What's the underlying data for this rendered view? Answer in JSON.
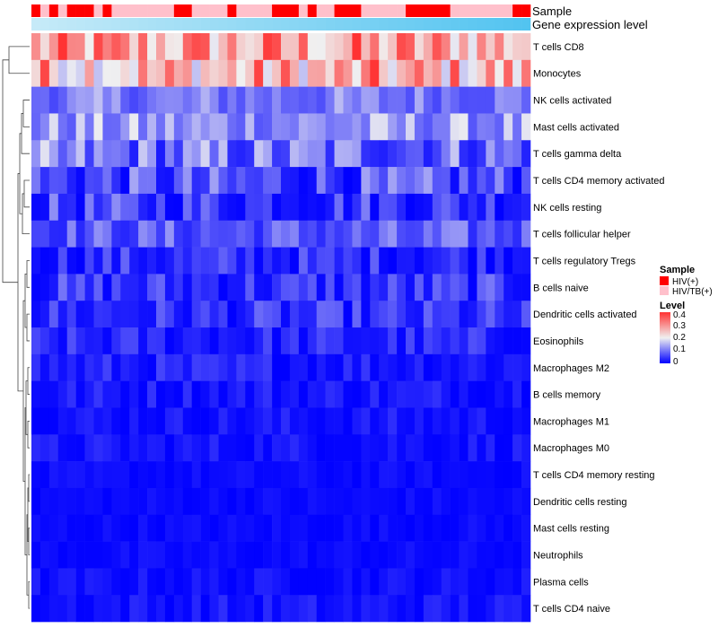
{
  "chart_data": {
    "type": "heatmap",
    "annotation_titles": {
      "sample": "Sample",
      "gene_expression": "Gene expression level"
    },
    "sample_legend": {
      "title": "Sample",
      "entries": [
        {
          "label": "HIV(+)",
          "color": "#ff0000"
        },
        {
          "label": "HIV/TB(+)",
          "color": "#ffc0cb"
        }
      ]
    },
    "level_legend": {
      "title": "Level",
      "ticks": [
        "0.4",
        "0.3",
        "0.2",
        "0.1",
        "0"
      ],
      "range": [
        0,
        0.4
      ],
      "colors": {
        "low": "#0000ff",
        "mid": "#f0f0f0",
        "high": "#ff3333"
      }
    },
    "sample_groups": [
      0,
      1,
      0,
      1,
      0,
      0,
      0,
      1,
      0,
      1,
      1,
      1,
      1,
      1,
      1,
      1,
      0,
      0,
      1,
      1,
      1,
      1,
      0,
      1,
      1,
      1,
      1,
      0,
      0,
      0,
      1,
      0,
      1,
      1,
      0,
      0,
      0,
      1,
      1,
      1,
      1,
      1,
      0,
      0,
      0,
      0,
      0,
      1,
      1,
      1,
      1,
      1,
      1,
      1,
      0,
      0
    ],
    "gene_expression_annotation": [
      0.02,
      0.98
    ],
    "rows": [
      "T cells CD8",
      "Monocytes",
      "NK cells activated",
      "Mast cells activated",
      "T cells gamma delta",
      "T cells CD4 memory activated",
      "NK cells resting",
      "T cells follicular helper",
      "T cells regulatory  Tregs",
      "B cells naive",
      "Dendritic cells activated",
      "Eosinophils",
      "Macrophages M2",
      "B cells memory",
      "Macrophages M1",
      "Macrophages M0",
      "T cells CD4 memory resting",
      "Dendritic cells resting",
      "Mast cells resting",
      "Neutrophils",
      "Plasma cells",
      "T cells CD4 naive"
    ],
    "n_columns": 56,
    "row_value_ranges": [
      [
        0.18,
        0.42
      ],
      [
        0.16,
        0.4
      ],
      [
        0.06,
        0.16
      ],
      [
        0.07,
        0.2
      ],
      [
        0.02,
        0.19
      ],
      [
        0.0,
        0.14
      ],
      [
        0.0,
        0.12
      ],
      [
        0.03,
        0.13
      ],
      [
        0.0,
        0.09
      ],
      [
        0.0,
        0.1
      ],
      [
        0.0,
        0.09
      ],
      [
        0.0,
        0.07
      ],
      [
        0.0,
        0.06
      ],
      [
        0.0,
        0.05
      ],
      [
        0.0,
        0.04
      ],
      [
        0.0,
        0.04
      ],
      [
        0.0,
        0.02
      ],
      [
        0.0,
        0.02
      ],
      [
        0.0,
        0.02
      ],
      [
        0.0,
        0.02
      ],
      [
        0.0,
        0.03
      ],
      [
        0.0,
        0.04
      ]
    ],
    "dendrogram": "hierarchical clustering of rows",
    "xlabel": "",
    "ylabel": ""
  }
}
